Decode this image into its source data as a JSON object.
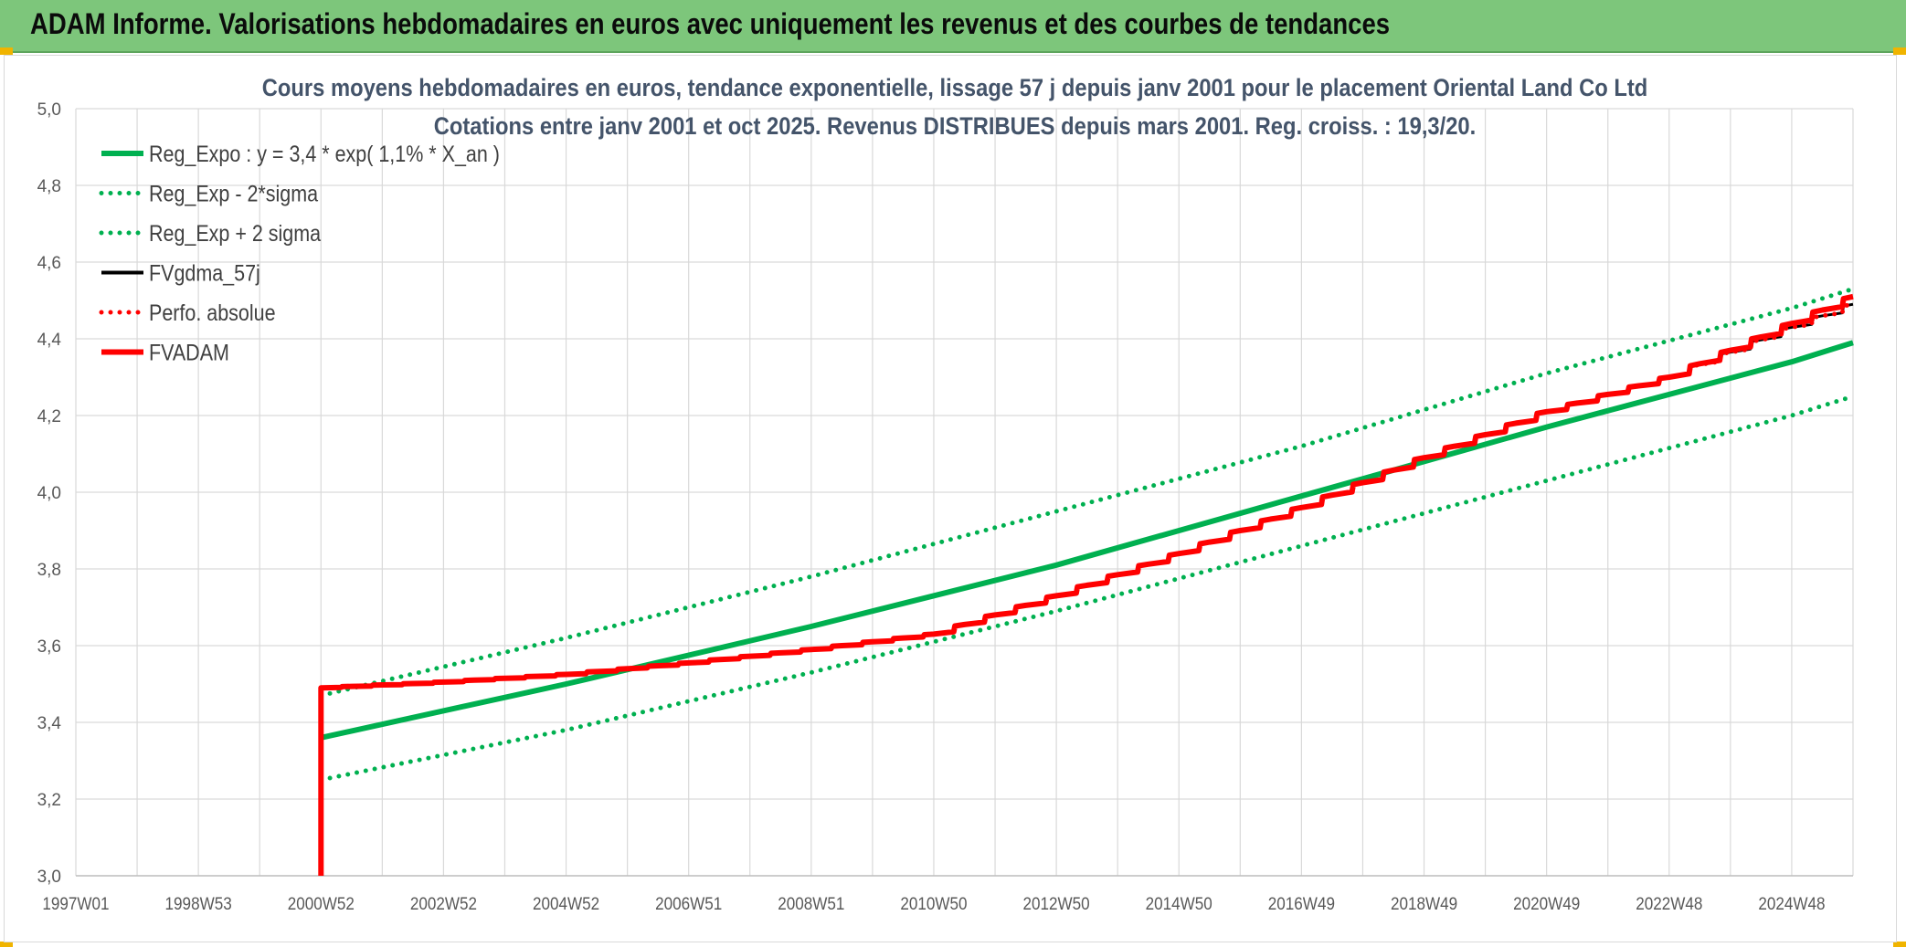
{
  "banner": {
    "title": "ADAM Informe. Valorisations hebdomadaires en euros avec uniquement les revenus et des courbes de tendances"
  },
  "colors": {
    "banner_bg": "#7dc67b",
    "accent_corner": "#f0b400",
    "trend_green": "#00b050",
    "series_red": "#ff0000",
    "series_black": "#000000",
    "title_text": "#44546a",
    "grid": "#d9d9d9"
  },
  "chart_data": {
    "type": "line",
    "title": "Cours moyens hebdomadaires en euros, tendance exponentielle, lissage 57 j depuis janv 2001 pour le placement Oriental Land Co Ltd",
    "subtitle": "Cotations entre janv 2001 et oct 2025. Revenus DISTRIBUES depuis mars 2001. Reg. croiss. : 19,3/20.",
    "xlabel": "",
    "ylabel": "",
    "ylim": [
      3.0,
      5.0
    ],
    "y_ticks": [
      "3,0",
      "3,2",
      "3,4",
      "3,6",
      "3,8",
      "4,0",
      "4,2",
      "4,4",
      "4,6",
      "4,8",
      "5,0"
    ],
    "xlim": [
      1997.0,
      2026.0
    ],
    "x_ticks": [
      {
        "x": 1997.0,
        "label": "1997W01"
      },
      {
        "x": 1999.0,
        "label": "1998W53"
      },
      {
        "x": 2001.0,
        "label": "2000W52"
      },
      {
        "x": 2003.0,
        "label": "2002W52"
      },
      {
        "x": 2005.0,
        "label": "2004W52"
      },
      {
        "x": 2007.0,
        "label": "2006W51"
      },
      {
        "x": 2009.0,
        "label": "2008W51"
      },
      {
        "x": 2011.0,
        "label": "2010W50"
      },
      {
        "x": 2013.0,
        "label": "2012W50"
      },
      {
        "x": 2015.0,
        "label": "2014W50"
      },
      {
        "x": 2017.0,
        "label": "2016W49"
      },
      {
        "x": 2019.0,
        "label": "2018W49"
      },
      {
        "x": 2021.0,
        "label": "2020W49"
      },
      {
        "x": 2023.0,
        "label": "2022W48"
      },
      {
        "x": 2025.0,
        "label": "2024W48"
      }
    ],
    "grid": "on",
    "legend_placement": "top-left",
    "series": [
      {
        "name": "Reg_Expo : y = 3,4 * exp( 1,1% *  X_an )",
        "style": "solid-thick",
        "color": "#00b050",
        "x": [
          2001.0,
          2005.0,
          2009.0,
          2013.0,
          2017.0,
          2021.0,
          2025.0,
          2026.0
        ],
        "y": [
          3.36,
          3.5,
          3.65,
          3.81,
          3.99,
          4.17,
          4.34,
          4.39
        ]
      },
      {
        "name": "Reg_Exp - 2*sigma",
        "style": "dotted",
        "color": "#00b050",
        "x": [
          2001.0,
          2005.0,
          2009.0,
          2013.0,
          2017.0,
          2021.0,
          2025.0,
          2026.0
        ],
        "y": [
          3.25,
          3.38,
          3.53,
          3.69,
          3.86,
          4.03,
          4.2,
          4.25
        ]
      },
      {
        "name": "Reg_Exp + 2 sigma",
        "style": "dotted",
        "color": "#00b050",
        "x": [
          2001.0,
          2005.0,
          2009.0,
          2013.0,
          2017.0,
          2021.0,
          2025.0,
          2026.0
        ],
        "y": [
          3.47,
          3.62,
          3.78,
          3.95,
          4.12,
          4.31,
          4.48,
          4.53
        ]
      },
      {
        "name": "FVgdma_57j",
        "style": "solid",
        "color": "#000000",
        "x": [
          2001.0,
          2003.0,
          2005.0,
          2007.0,
          2009.0,
          2011.0,
          2013.0,
          2015.0,
          2017.0,
          2019.0,
          2021.0,
          2023.0,
          2025.0,
          2026.0
        ],
        "y": [
          3.49,
          3.505,
          3.525,
          3.555,
          3.59,
          3.63,
          3.73,
          3.84,
          3.96,
          4.09,
          4.21,
          4.3,
          4.43,
          4.49
        ]
      },
      {
        "name": "Perfo. absolue",
        "style": "dotted",
        "color": "#ff0000",
        "x": [
          2001.0,
          2003.0,
          2005.0,
          2007.0,
          2009.0,
          2011.0,
          2013.0,
          2015.0,
          2017.0,
          2019.0,
          2021.0,
          2023.0,
          2025.0,
          2026.0
        ],
        "y": [
          3.49,
          3.505,
          3.525,
          3.555,
          3.59,
          3.63,
          3.73,
          3.84,
          3.96,
          4.09,
          4.21,
          4.3,
          4.43,
          4.49
        ]
      },
      {
        "name": "FVADAM",
        "style": "solid-thick",
        "color": "#ff0000",
        "x": [
          2001.0,
          2001.0,
          2003.0,
          2005.0,
          2007.0,
          2009.0,
          2011.0,
          2013.0,
          2015.0,
          2017.0,
          2019.0,
          2021.0,
          2023.0,
          2025.0,
          2026.0
        ],
        "y": [
          3.0,
          3.49,
          3.505,
          3.525,
          3.555,
          3.59,
          3.63,
          3.73,
          3.84,
          3.96,
          4.09,
          4.21,
          4.3,
          4.44,
          4.51
        ]
      }
    ]
  }
}
